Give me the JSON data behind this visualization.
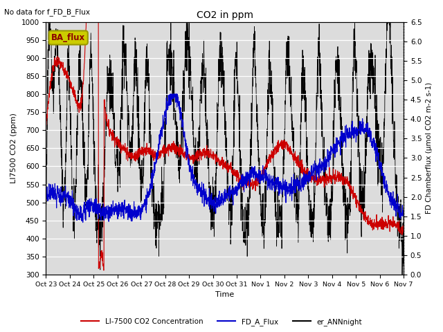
{
  "title": "CO2 in ppm",
  "top_left_text": "No data for f_FD_B_Flux",
  "legend_box_text": "BA_flux",
  "ylabel_left": "LI7500 CO2 (ppm)",
  "ylabel_right": "FD Chamberflux (μmol CO2 m-2 s-1)",
  "xlabel": "Time",
  "ylim_left": [
    300,
    1000
  ],
  "ylim_right": [
    0.0,
    6.5
  ],
  "yticks_left": [
    300,
    350,
    400,
    450,
    500,
    550,
    600,
    650,
    700,
    750,
    800,
    850,
    900,
    950,
    1000
  ],
  "yticks_right": [
    0.0,
    0.5,
    1.0,
    1.5,
    2.0,
    2.5,
    3.0,
    3.5,
    4.0,
    4.5,
    5.0,
    5.5,
    6.0,
    6.5
  ],
  "xtick_labels": [
    "Oct 23",
    "Oct 24",
    "Oct 25",
    "Oct 26",
    "Oct 27",
    "Oct 28",
    "Oct 29",
    "Oct 30",
    "Oct 31",
    "Nov 1",
    "Nov 2",
    "Nov 3",
    "Nov 4",
    "Nov 5",
    "Nov 6",
    "Nov 7"
  ],
  "colors": {
    "red": "#CC0000",
    "blue": "#0000CC",
    "black": "#000000",
    "background": "#DCDCDC",
    "legend_box_bg": "#CCCC00",
    "legend_box_border": "#888800"
  },
  "legend_labels": [
    "LI-7500 CO2 Concentration",
    "FD_A_Flux",
    "er_ANNnight"
  ],
  "n_points": 2000
}
